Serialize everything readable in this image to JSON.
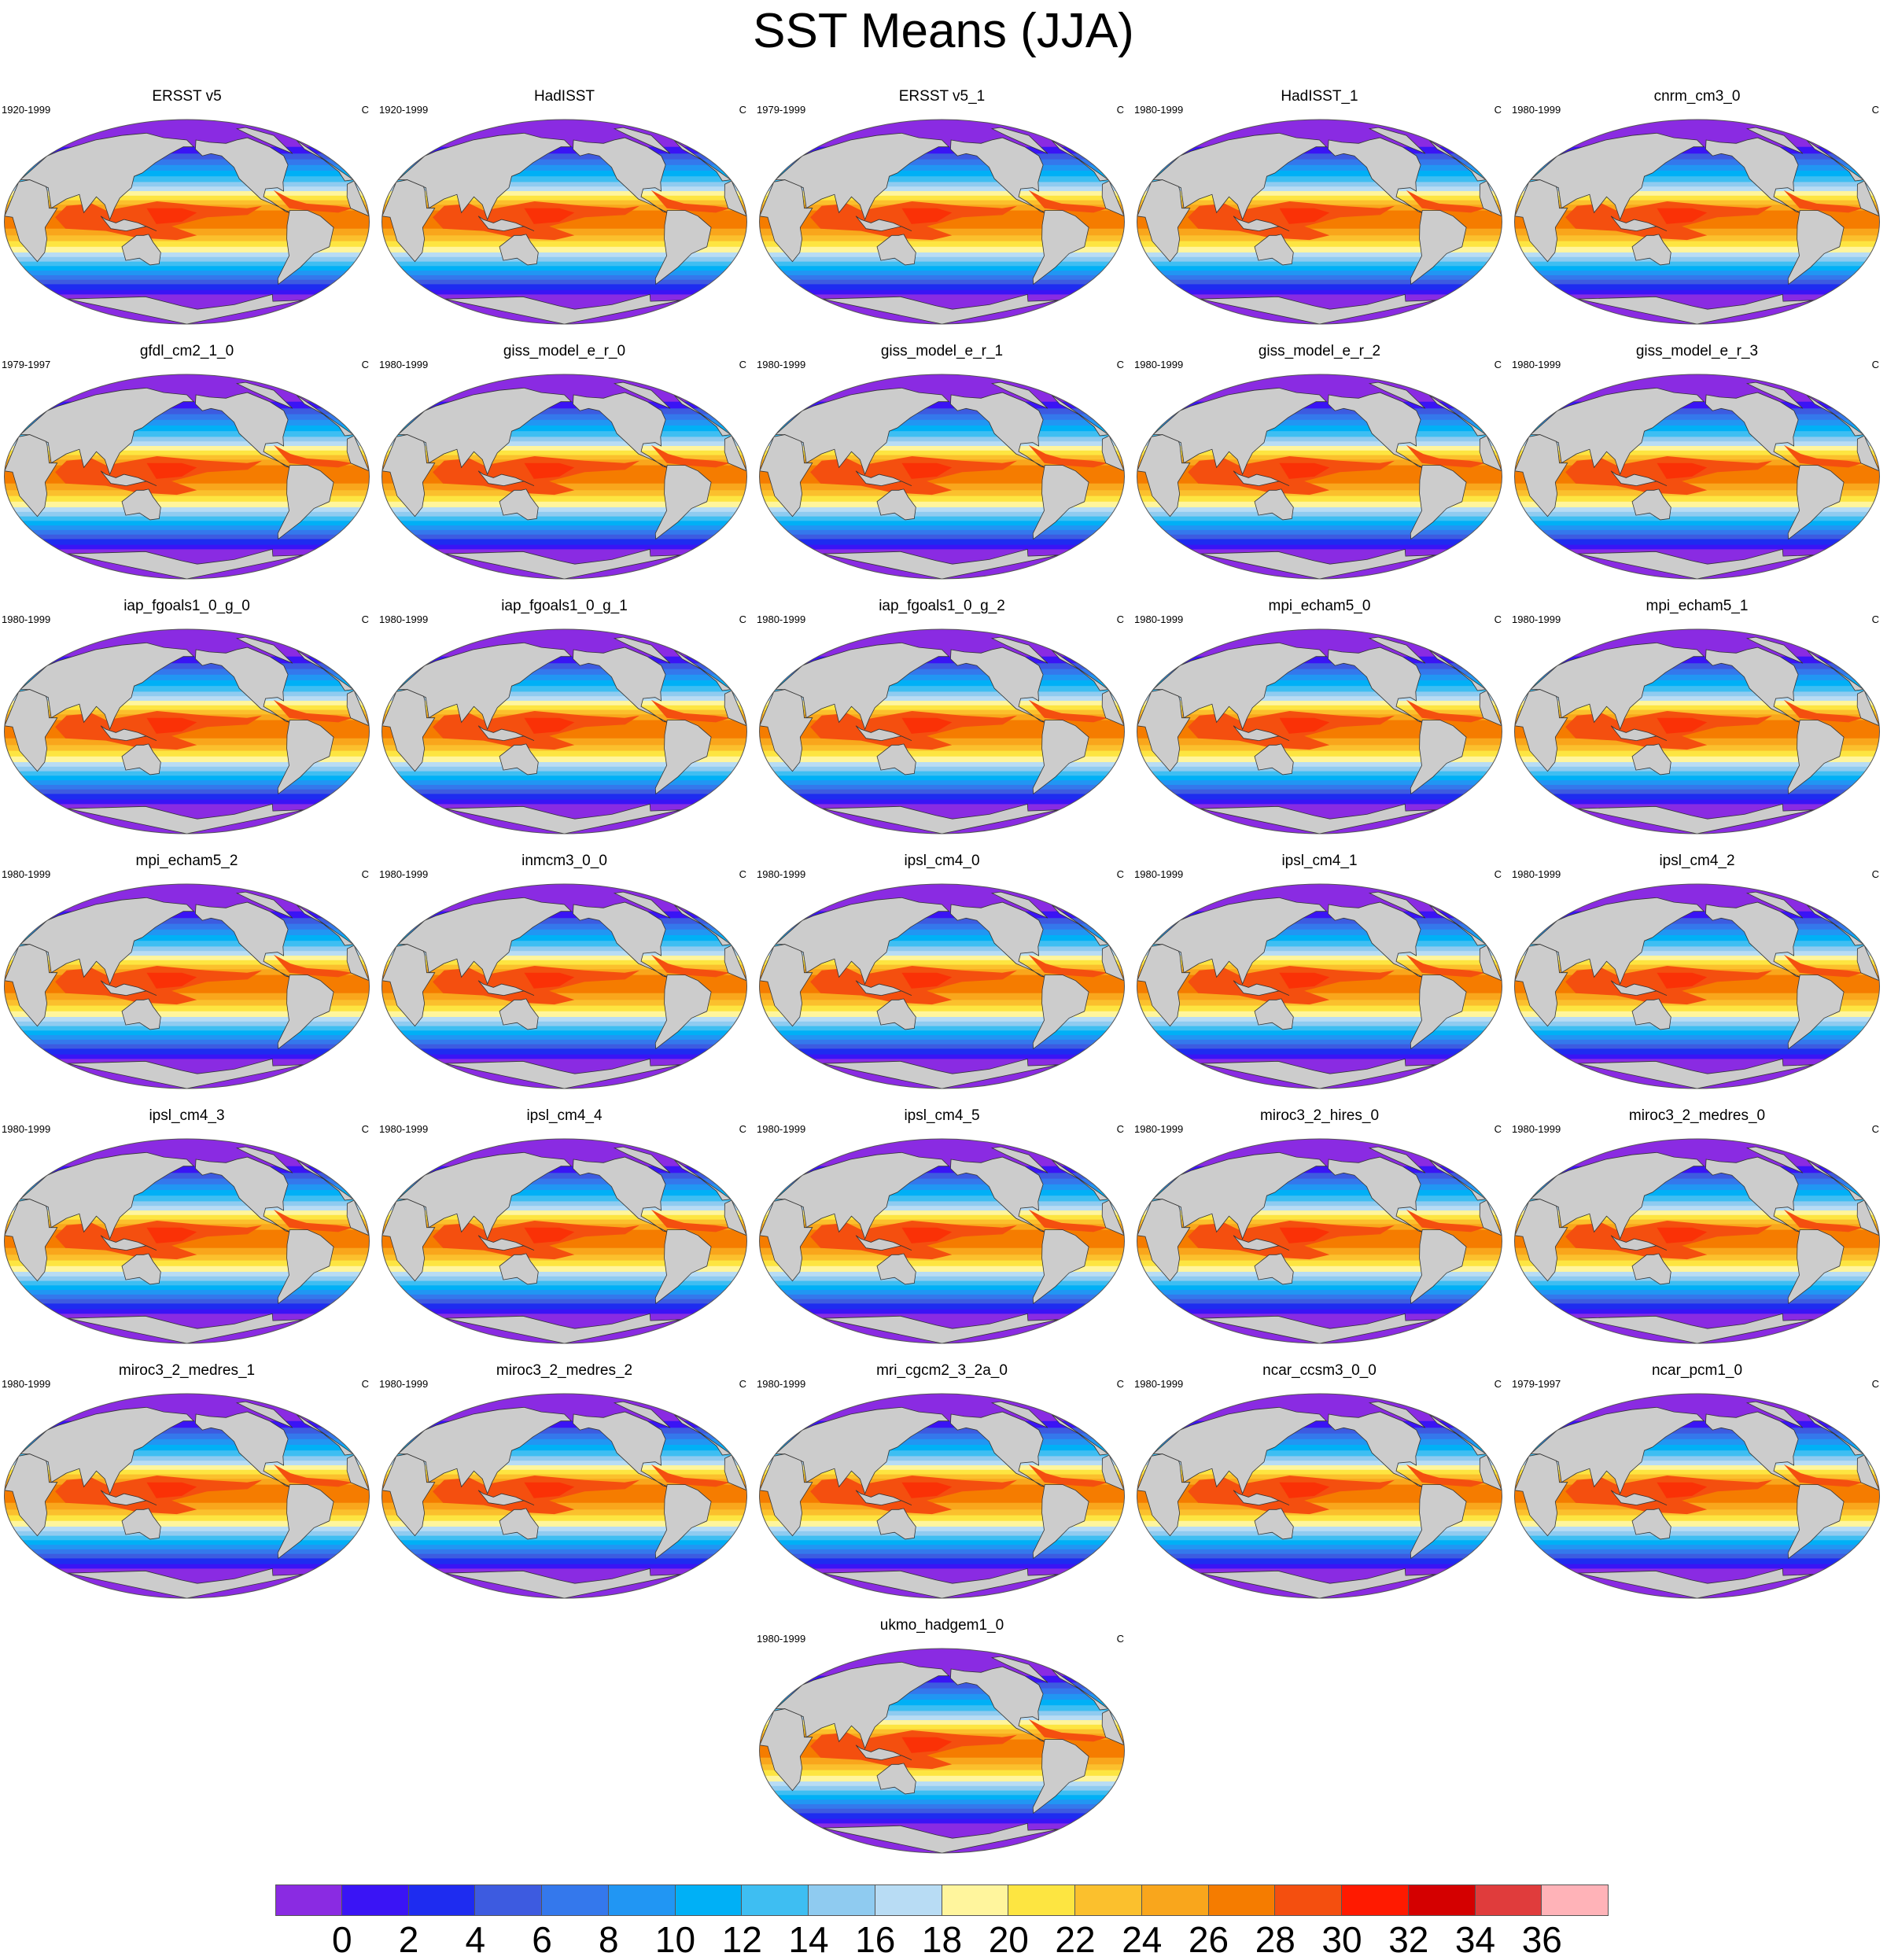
{
  "page_title": "SST Means (JJA)",
  "chart_data": {
    "type": "heatmap",
    "title": "SST Means (JJA)",
    "projection": "Robinson (global, Pacific-centered)",
    "units_label": "C",
    "panels": [
      {
        "name": "ERSST v5",
        "period": "1920-1999",
        "units": "C"
      },
      {
        "name": "HadISST",
        "period": "1920-1999",
        "units": "C"
      },
      {
        "name": "ERSST v5_1",
        "period": "1979-1999",
        "units": "C"
      },
      {
        "name": "HadISST_1",
        "period": "1980-1999",
        "units": "C"
      },
      {
        "name": "cnrm_cm3_0",
        "period": "1980-1999",
        "units": "C"
      },
      {
        "name": "gfdl_cm2_1_0",
        "period": "1979-1997",
        "units": "C"
      },
      {
        "name": "giss_model_e_r_0",
        "period": "1980-1999",
        "units": "C"
      },
      {
        "name": "giss_model_e_r_1",
        "period": "1980-1999",
        "units": "C"
      },
      {
        "name": "giss_model_e_r_2",
        "period": "1980-1999",
        "units": "C"
      },
      {
        "name": "giss_model_e_r_3",
        "period": "1980-1999",
        "units": "C"
      },
      {
        "name": "iap_fgoals1_0_g_0",
        "period": "1980-1999",
        "units": "C"
      },
      {
        "name": "iap_fgoals1_0_g_1",
        "period": "1980-1999",
        "units": "C"
      },
      {
        "name": "iap_fgoals1_0_g_2",
        "period": "1980-1999",
        "units": "C"
      },
      {
        "name": "mpi_echam5_0",
        "period": "1980-1999",
        "units": "C"
      },
      {
        "name": "mpi_echam5_1",
        "period": "1980-1999",
        "units": "C"
      },
      {
        "name": "mpi_echam5_2",
        "period": "1980-1999",
        "units": "C"
      },
      {
        "name": "inmcm3_0_0",
        "period": "1980-1999",
        "units": "C"
      },
      {
        "name": "ipsl_cm4_0",
        "period": "1980-1999",
        "units": "C"
      },
      {
        "name": "ipsl_cm4_1",
        "period": "1980-1999",
        "units": "C"
      },
      {
        "name": "ipsl_cm4_2",
        "period": "1980-1999",
        "units": "C"
      },
      {
        "name": "ipsl_cm4_3",
        "period": "1980-1999",
        "units": "C"
      },
      {
        "name": "ipsl_cm4_4",
        "period": "1980-1999",
        "units": "C"
      },
      {
        "name": "ipsl_cm4_5",
        "period": "1980-1999",
        "units": "C"
      },
      {
        "name": "miroc3_2_hires_0",
        "period": "1980-1999",
        "units": "C"
      },
      {
        "name": "miroc3_2_medres_0",
        "period": "1980-1999",
        "units": "C"
      },
      {
        "name": "miroc3_2_medres_1",
        "period": "1980-1999",
        "units": "C"
      },
      {
        "name": "miroc3_2_medres_2",
        "period": "1980-1999",
        "units": "C"
      },
      {
        "name": "mri_cgcm2_3_2a_0",
        "period": "1980-1999",
        "units": "C"
      },
      {
        "name": "ncar_ccsm3_0_0",
        "period": "1980-1999",
        "units": "C"
      },
      {
        "name": "ncar_pcm1_0",
        "period": "1979-1997",
        "units": "C"
      },
      {
        "name": "ukmo_hadgem1_0",
        "period": "1980-1999",
        "units": "C"
      }
    ],
    "colorbar": {
      "levels": [
        0,
        2,
        4,
        6,
        8,
        10,
        12,
        14,
        16,
        18,
        20,
        22,
        24,
        26,
        28,
        30,
        32,
        34,
        36
      ],
      "tick_labels": [
        "0",
        "2",
        "4",
        "6",
        "8",
        "10",
        "12",
        "14",
        "16",
        "18",
        "20",
        "22",
        "24",
        "26",
        "28",
        "30",
        "32",
        "34",
        "36"
      ],
      "colors": [
        "#8a2be2",
        "#3a14f5",
        "#1e2cf0",
        "#3d5be0",
        "#3478ec",
        "#2196f3",
        "#00b0f6",
        "#3ebef2",
        "#8fcbf0",
        "#b8dcf4",
        "#fff59d",
        "#fde541",
        "#fbc02d",
        "#f9a61c",
        "#f57c00",
        "#f44f0f",
        "#ff1a00",
        "#d40000",
        "#e03c3c",
        "#ffb3b8"
      ]
    },
    "land_color": "#cccccc"
  }
}
